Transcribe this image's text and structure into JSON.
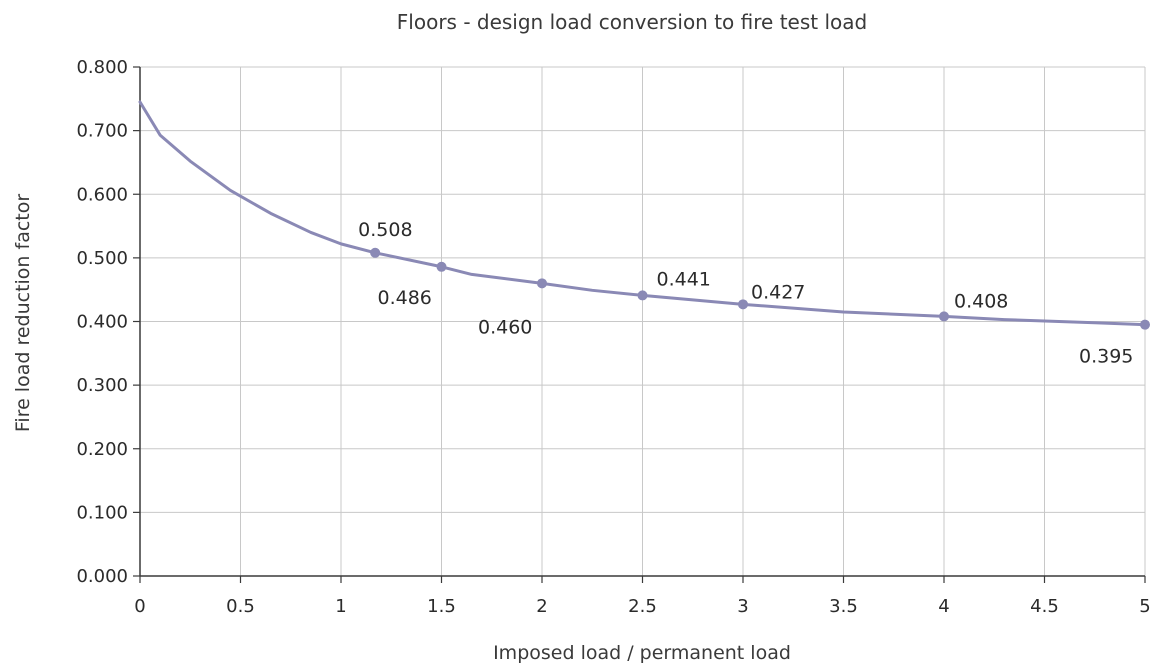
{
  "chart_data": {
    "type": "line",
    "title": "Floors - design load conversion to fire test load",
    "xlabel": "Imposed load / permanent load",
    "ylabel": "Fire load reduction factor",
    "xlim": [
      0,
      5
    ],
    "ylim": [
      0,
      0.8
    ],
    "grid": true,
    "x_ticks": [
      "0",
      "0.5",
      "1",
      "1.5",
      "2",
      "2.5",
      "3",
      "3.5",
      "4",
      "4.5",
      "5"
    ],
    "y_ticks": [
      "0.000",
      "0.100",
      "0.200",
      "0.300",
      "0.400",
      "0.500",
      "0.600",
      "0.700",
      "0.800"
    ],
    "series": [
      {
        "color": "#8a89b5",
        "x": [
          0,
          0.1,
          0.25,
          0.45,
          0.65,
          0.85,
          1.0,
          1.17,
          1.5,
          1.65,
          2.0,
          2.25,
          2.5,
          3.0,
          3.5,
          4.0,
          4.3,
          4.75,
          5.0
        ],
        "y": [
          0.745,
          0.693,
          0.652,
          0.606,
          0.57,
          0.54,
          0.522,
          0.508,
          0.486,
          0.474,
          0.46,
          0.449,
          0.441,
          0.427,
          0.415,
          0.408,
          0.403,
          0.398,
          0.395
        ]
      }
    ],
    "markers": [
      {
        "x": 1.17,
        "y": 0.508,
        "label": "0.508"
      },
      {
        "x": 1.5,
        "y": 0.486,
        "label": "0.486"
      },
      {
        "x": 2.0,
        "y": 0.46,
        "label": "0.460"
      },
      {
        "x": 2.5,
        "y": 0.441,
        "label": "0.441"
      },
      {
        "x": 3.0,
        "y": 0.427,
        "label": "0.427"
      },
      {
        "x": 4.0,
        "y": 0.408,
        "label": "0.408"
      },
      {
        "x": 5.0,
        "y": 0.395,
        "label": "0.395"
      }
    ]
  }
}
